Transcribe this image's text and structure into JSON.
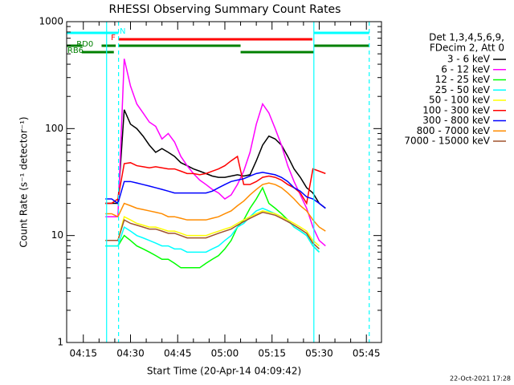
{
  "chart_data": {
    "type": "line",
    "title": "RHESSI Observing Summary Count Rates",
    "xlabel": "Start Time (20-Apr-14 04:09:42)",
    "ylabel": "Count Rate (s⁻¹ detector⁻¹)",
    "legend_header": [
      "Det 1,3,4,5,6,9,",
      "FDecim 2, Att 0"
    ],
    "timestamp": "22-Oct-2021 17:28",
    "log_y": true,
    "xlim": [
      9.7,
      109.8
    ],
    "ylim": [
      1,
      1000
    ],
    "xticks": [
      {
        "value": 15,
        "label": "04:15"
      },
      {
        "value": 30,
        "label": "04:30"
      },
      {
        "value": 45,
        "label": "04:45"
      },
      {
        "value": 60,
        "label": "05:00"
      },
      {
        "value": 75,
        "label": "05:15"
      },
      {
        "value": 90,
        "label": "05:30"
      },
      {
        "value": 105,
        "label": "05:45"
      }
    ],
    "yticks": [
      1,
      10,
      100,
      1000
    ],
    "x": [
      22,
      24,
      26,
      28,
      30,
      32,
      34,
      36,
      38,
      40,
      42,
      44,
      46,
      48,
      50,
      52,
      54,
      56,
      58,
      60,
      62,
      64,
      66,
      68,
      70,
      72,
      74,
      76,
      78,
      80,
      82,
      84,
      86,
      88,
      90,
      92
    ],
    "series": [
      {
        "name": "3 - 6 keV",
        "color": "#000000",
        "values": [
          20,
          20,
          20,
          150,
          110,
          100,
          85,
          70,
          60,
          65,
          60,
          55,
          48,
          45,
          42,
          40,
          38,
          36,
          35,
          35,
          36,
          37,
          36,
          37,
          50,
          70,
          85,
          80,
          70,
          55,
          42,
          35,
          28,
          25,
          20,
          18
        ]
      },
      {
        "name": "6 - 12 keV",
        "color": "#ff00ff",
        "values": [
          15,
          15,
          15,
          450,
          250,
          170,
          140,
          115,
          105,
          80,
          90,
          75,
          55,
          45,
          38,
          33,
          30,
          27,
          25,
          22,
          24,
          30,
          40,
          60,
          110,
          170,
          140,
          100,
          70,
          45,
          32,
          24,
          18,
          12,
          9,
          8
        ]
      },
      {
        "name": "12 - 25 keV",
        "color": "#00ff00",
        "values": [
          8,
          8,
          8,
          10,
          9,
          8,
          7.5,
          7,
          6.5,
          6,
          6,
          5.5,
          5,
          5,
          5,
          5,
          5.5,
          6,
          6.5,
          7.5,
          9,
          12,
          14,
          18,
          22,
          28,
          20,
          18,
          16,
          14,
          12,
          11,
          10,
          8,
          7,
          null
        ]
      },
      {
        "name": "25 - 50 keV",
        "color": "#00ffff",
        "values": [
          8,
          8,
          8,
          12,
          11,
          10,
          9.5,
          9,
          8.5,
          8,
          8,
          7.5,
          7.5,
          7,
          7,
          7,
          7,
          7.5,
          8,
          9,
          10,
          12,
          13,
          15,
          17,
          18,
          17,
          16,
          15,
          14,
          12,
          11,
          10,
          8,
          7,
          null
        ]
      },
      {
        "name": "50 - 100 keV",
        "color": "#ffff00",
        "values": [
          9,
          9,
          9,
          15,
          14,
          13,
          12.5,
          12,
          12,
          11.5,
          11,
          11,
          10.5,
          10,
          10,
          10,
          10,
          10.5,
          11,
          11.5,
          12,
          13,
          14,
          15,
          16,
          17,
          16.5,
          16,
          15,
          14,
          13,
          12,
          11,
          9,
          8,
          null
        ]
      },
      {
        "name": "100 - 300 keV",
        "color": "#ff0000",
        "values": [
          20,
          20,
          22,
          47,
          48,
          45,
          44,
          43,
          44,
          43,
          42,
          42,
          40,
          38,
          38,
          37,
          38,
          40,
          42,
          45,
          50,
          55,
          30,
          30,
          32,
          35,
          36,
          35,
          33,
          30,
          28,
          25,
          20,
          42,
          40,
          38
        ]
      },
      {
        "name": "300 - 800 keV",
        "color": "#0000ff",
        "values": [
          22,
          22,
          20,
          32,
          32,
          31,
          30,
          29,
          28,
          27,
          26,
          25,
          25,
          25,
          25,
          25,
          25,
          26,
          28,
          30,
          32,
          33,
          34,
          36,
          38,
          39,
          38,
          37,
          35,
          32,
          28,
          26,
          23,
          22,
          20,
          18
        ]
      },
      {
        "name": "800 - 7000 keV",
        "color": "#ff8c00",
        "values": [
          16,
          16,
          15,
          20,
          19,
          18,
          17.5,
          17,
          16.5,
          16,
          15,
          15,
          14.5,
          14,
          14,
          14,
          14,
          14.5,
          15,
          16,
          17,
          19,
          21,
          24,
          27,
          30,
          31,
          30,
          28,
          25,
          22,
          19,
          17,
          14,
          12,
          11
        ]
      },
      {
        "name": "7000 - 15000 keV",
        "color": "#a0522d",
        "values": [
          9,
          9,
          9,
          14,
          13,
          12.5,
          12,
          11.5,
          11.5,
          11,
          10.5,
          10.5,
          10,
          9.5,
          9.5,
          9.5,
          9.5,
          10,
          10.5,
          11,
          11.5,
          12.5,
          13.5,
          14.5,
          15.5,
          16.5,
          16,
          15.5,
          14.5,
          13.5,
          12.5,
          11.5,
          10.5,
          8.5,
          7.5,
          null
        ]
      }
    ],
    "vlines": [
      {
        "x": 22.4,
        "color": "#00ffff",
        "dashed": false
      },
      {
        "x": 26.2,
        "color": "#00ffff",
        "dashed": true
      },
      {
        "x": 88.3,
        "color": "#00ffff",
        "dashed": false
      },
      {
        "x": 105.9,
        "color": "#00ffff",
        "dashed": true
      }
    ],
    "flags": [
      {
        "label": "N",
        "color": "#00ffff",
        "row": 0,
        "label_x": 27.5,
        "segments": [
          [
            9.7,
            26.2
          ],
          [
            88.3,
            105.9
          ]
        ]
      },
      {
        "label": "F",
        "color": "#ff0000",
        "row": 1,
        "label_x": 24.5,
        "segments": [
          [
            26.2,
            87.8
          ]
        ]
      },
      {
        "label": "RD0",
        "color": "#008000",
        "row": 2,
        "label_x": 15.5,
        "segments": [
          [
            9.7,
            14.7
          ],
          [
            20.8,
            25.3
          ],
          [
            26.2,
            65
          ],
          [
            88.3,
            105.9
          ]
        ]
      },
      {
        "label": "RB6",
        "color": "#008000",
        "row": 3,
        "label_x": 12.5,
        "segments": [
          [
            14.5,
            24.7
          ],
          [
            65,
            88.3
          ]
        ]
      }
    ]
  }
}
